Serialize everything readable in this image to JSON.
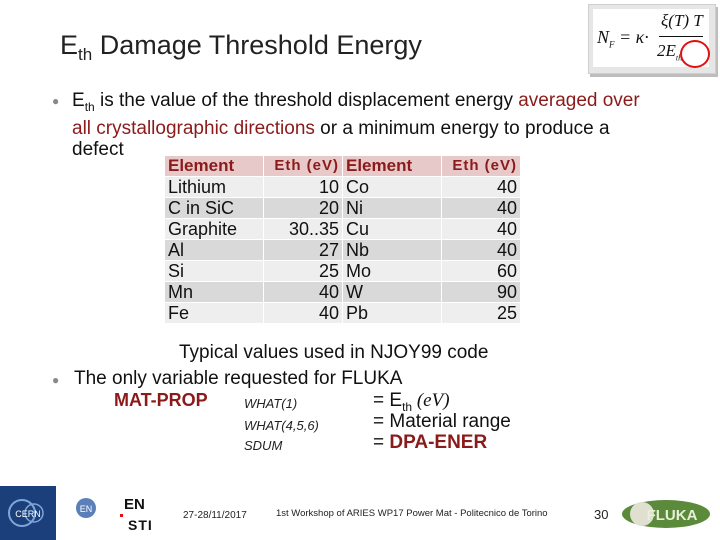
{
  "title": {
    "main": "E",
    "sub": "th",
    "rest": " Damage Threshold Energy"
  },
  "formula": {
    "lhs": "N",
    "lhs_sub": "F",
    "eq": " = κ·",
    "numerator": "ξ(T) T",
    "den_main": "2E",
    "den_sub": "th"
  },
  "bullet1": {
    "e": "E",
    "e_sub": "th",
    "text_a": " is the value of the threshold displacement energy ",
    "text_red": "averaged over all crystallographic directions",
    "text_b": " or a minimum energy to produce a defect"
  },
  "table": {
    "headers": [
      "Element",
      "Eth (eV)",
      "Element",
      "Eth (eV)"
    ],
    "rows": [
      [
        "Lithium",
        "10",
        "Co",
        "40"
      ],
      [
        "C in SiC",
        "20",
        "Ni",
        "40"
      ],
      [
        "Graphite",
        "30..35",
        "Cu",
        "40"
      ],
      [
        "Al",
        "27",
        "Nb",
        "40"
      ],
      [
        "Si",
        "25",
        "Mo",
        "60"
      ],
      [
        "Mn",
        "40",
        "W",
        "90"
      ],
      [
        "Fe",
        "40",
        "Pb",
        "25"
      ]
    ]
  },
  "note": "Typical values used in NJOY99 code",
  "bullet2": {
    "text": "The only variable requested for FLUKA",
    "mat": "MAT-PROP",
    "what1": "WHAT(1)",
    "what456": "WHAT(4,5,6)",
    "sdum": "SDUM",
    "val1_a": "= E",
    "val1_sub": "th",
    "val1_unit": " (eV)",
    "val2": "= Material range",
    "val3_a": "= ",
    "val3_b": "DPA-ENER"
  },
  "footer": {
    "cern": "CERN",
    "en_top": "EN",
    "en_bottom": "STI",
    "en_small": "EN",
    "date": "27-28/11/2017",
    "workshop": "1st Workshop of ARIES WP17 Power Mat - Politecnico de Torino",
    "page": "30",
    "fluka": "FLUKA"
  }
}
